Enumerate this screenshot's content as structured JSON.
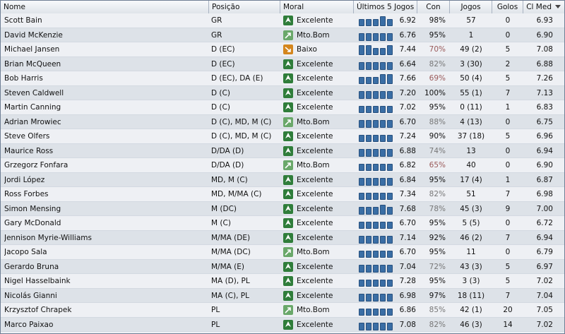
{
  "columns": {
    "nome": "Nome",
    "posicao": "Posição",
    "moral": "Moral",
    "ultimos5": "Últimos 5 Jogos",
    "con": "Con",
    "jogos": "Jogos",
    "golos": "Golos",
    "clmed": "Cl Med"
  },
  "colors": {
    "morale_excellent": "#2f7d3a",
    "morale_good": "#6aa86a",
    "morale_low": "#d4861e",
    "form_bar": "#3a6ea5"
  },
  "players": [
    {
      "name": "Scott Bain",
      "pos": "GR",
      "morale": "Excelente",
      "morale_icon": "excellent-morale-icon",
      "form": [
        3,
        3,
        3,
        4,
        3
      ],
      "avg5": "6.92",
      "con": "98%",
      "con_level": "high",
      "jogos": "57",
      "golos": "0",
      "clmed": "6.93"
    },
    {
      "name": "David McKenzie",
      "pos": "GR",
      "morale": "Mto.Bom",
      "morale_icon": "good-morale-icon",
      "form": [
        3,
        3,
        3,
        3,
        3
      ],
      "avg5": "6.76",
      "con": "95%",
      "con_level": "high",
      "jogos": "1",
      "golos": "0",
      "clmed": "6.90"
    },
    {
      "name": "Michael Jansen",
      "pos": "D (EC)",
      "morale": "Baixo",
      "morale_icon": "low-morale-icon",
      "form": [
        4,
        4,
        3,
        3,
        4
      ],
      "avg5": "7.44",
      "con": "70%",
      "con_level": "low",
      "jogos": "49 (2)",
      "golos": "5",
      "clmed": "7.08"
    },
    {
      "name": "Brian McQueen",
      "pos": "D (EC)",
      "morale": "Excelente",
      "morale_icon": "excellent-morale-icon",
      "form": [
        3,
        3,
        3,
        3,
        3
      ],
      "avg5": "6.64",
      "con": "82%",
      "con_level": "mid",
      "jogos": "3 (30)",
      "golos": "2",
      "clmed": "6.88"
    },
    {
      "name": "Bob Harris",
      "pos": "D (EC), DA (E)",
      "morale": "Excelente",
      "morale_icon": "excellent-morale-icon",
      "form": [
        3,
        3,
        3,
        4,
        4
      ],
      "avg5": "7.66",
      "con": "69%",
      "con_level": "low",
      "jogos": "50 (4)",
      "golos": "5",
      "clmed": "7.26"
    },
    {
      "name": "Steven Caldwell",
      "pos": "D (C)",
      "morale": "Excelente",
      "morale_icon": "excellent-morale-icon",
      "form": [
        3,
        3,
        3,
        3,
        3
      ],
      "avg5": "7.20",
      "con": "100%",
      "con_level": "high",
      "jogos": "55 (1)",
      "golos": "7",
      "clmed": "7.13"
    },
    {
      "name": "Martin Canning",
      "pos": "D (C)",
      "morale": "Excelente",
      "morale_icon": "excellent-morale-icon",
      "form": [
        3,
        3,
        3,
        3,
        3
      ],
      "avg5": "7.02",
      "con": "95%",
      "con_level": "high",
      "jogos": "0 (11)",
      "golos": "1",
      "clmed": "6.83"
    },
    {
      "name": "Adrian Mrowiec",
      "pos": "D (C), MD, M (C)",
      "morale": "Mto.Bom",
      "morale_icon": "good-morale-icon",
      "form": [
        3,
        3,
        3,
        3,
        3
      ],
      "avg5": "6.70",
      "con": "88%",
      "con_level": "mid",
      "jogos": "4 (13)",
      "golos": "0",
      "clmed": "6.75"
    },
    {
      "name": "Steve Olfers",
      "pos": "D (C), MD, M (C)",
      "morale": "Excelente",
      "morale_icon": "excellent-morale-icon",
      "form": [
        3,
        3,
        3,
        3,
        3
      ],
      "avg5": "7.24",
      "con": "90%",
      "con_level": "high",
      "jogos": "37 (18)",
      "golos": "5",
      "clmed": "6.96"
    },
    {
      "name": "Maurice Ross",
      "pos": "D/DA (D)",
      "morale": "Excelente",
      "morale_icon": "excellent-morale-icon",
      "form": [
        3,
        3,
        3,
        3,
        3
      ],
      "avg5": "6.88",
      "con": "74%",
      "con_level": "mid",
      "jogos": "13",
      "golos": "0",
      "clmed": "6.94"
    },
    {
      "name": "Grzegorz Fonfara",
      "pos": "D/DA (D)",
      "morale": "Mto.Bom",
      "morale_icon": "good-morale-icon",
      "form": [
        3,
        3,
        3,
        3,
        3
      ],
      "avg5": "6.82",
      "con": "65%",
      "con_level": "low",
      "jogos": "40",
      "golos": "0",
      "clmed": "6.90"
    },
    {
      "name": "Jordi López",
      "pos": "MD, M (C)",
      "morale": "Excelente",
      "morale_icon": "excellent-morale-icon",
      "form": [
        3,
        3,
        3,
        3,
        3
      ],
      "avg5": "6.84",
      "con": "95%",
      "con_level": "high",
      "jogos": "17 (4)",
      "golos": "1",
      "clmed": "6.87"
    },
    {
      "name": "Ross Forbes",
      "pos": "MD, M/MA (C)",
      "morale": "Excelente",
      "morale_icon": "excellent-morale-icon",
      "form": [
        3,
        3,
        3,
        3,
        3
      ],
      "avg5": "7.34",
      "con": "82%",
      "con_level": "mid",
      "jogos": "51",
      "golos": "7",
      "clmed": "6.98"
    },
    {
      "name": "Simon Mensing",
      "pos": "M (DC)",
      "morale": "Excelente",
      "morale_icon": "excellent-morale-icon",
      "form": [
        3,
        3,
        3,
        4,
        3
      ],
      "avg5": "7.68",
      "con": "78%",
      "con_level": "mid",
      "jogos": "45 (3)",
      "golos": "9",
      "clmed": "7.00"
    },
    {
      "name": "Gary McDonald",
      "pos": "M (C)",
      "morale": "Excelente",
      "morale_icon": "excellent-morale-icon",
      "form": [
        3,
        3,
        3,
        3,
        3
      ],
      "avg5": "6.70",
      "con": "95%",
      "con_level": "high",
      "jogos": "5 (5)",
      "golos": "0",
      "clmed": "6.72"
    },
    {
      "name": "Jennison Myrie-Williams",
      "pos": "M/MA (DE)",
      "morale": "Excelente",
      "morale_icon": "excellent-morale-icon",
      "form": [
        3,
        3,
        3,
        3,
        3
      ],
      "avg5": "7.14",
      "con": "92%",
      "con_level": "high",
      "jogos": "46 (2)",
      "golos": "7",
      "clmed": "6.94"
    },
    {
      "name": "Jacopo Sala",
      "pos": "M/MA (DC)",
      "morale": "Mto.Bom",
      "morale_icon": "good-morale-icon",
      "form": [
        3,
        3,
        3,
        3,
        3
      ],
      "avg5": "6.70",
      "con": "95%",
      "con_level": "high",
      "jogos": "11",
      "golos": "0",
      "clmed": "6.79"
    },
    {
      "name": "Gerardo Bruna",
      "pos": "M/MA (E)",
      "morale": "Excelente",
      "morale_icon": "excellent-morale-icon",
      "form": [
        3,
        3,
        3,
        3,
        3
      ],
      "avg5": "7.04",
      "con": "72%",
      "con_level": "mid",
      "jogos": "43 (3)",
      "golos": "5",
      "clmed": "6.97"
    },
    {
      "name": "Nigel Hasselbaink",
      "pos": "MA (D), PL",
      "morale": "Excelente",
      "morale_icon": "excellent-morale-icon",
      "form": [
        3,
        3,
        3,
        3,
        3
      ],
      "avg5": "7.28",
      "con": "95%",
      "con_level": "high",
      "jogos": "3 (3)",
      "golos": "5",
      "clmed": "7.02"
    },
    {
      "name": "Nicolás Gianni",
      "pos": "MA (C), PL",
      "morale": "Excelente",
      "morale_icon": "excellent-morale-icon",
      "form": [
        3,
        3,
        3,
        3,
        3
      ],
      "avg5": "6.98",
      "con": "97%",
      "con_level": "high",
      "jogos": "18 (11)",
      "golos": "7",
      "clmed": "7.04"
    },
    {
      "name": "Krzysztof Chrapek",
      "pos": "PL",
      "morale": "Mto.Bom",
      "morale_icon": "good-morale-icon",
      "form": [
        3,
        3,
        3,
        3,
        3
      ],
      "avg5": "6.86",
      "con": "85%",
      "con_level": "mid",
      "jogos": "42 (1)",
      "golos": "20",
      "clmed": "7.05"
    },
    {
      "name": "Marco Paixao",
      "pos": "PL",
      "morale": "Excelente",
      "morale_icon": "excellent-morale-icon",
      "form": [
        3,
        3,
        3,
        3,
        3
      ],
      "avg5": "7.08",
      "con": "82%",
      "con_level": "mid",
      "jogos": "46 (3)",
      "golos": "14",
      "clmed": "7.02"
    }
  ]
}
